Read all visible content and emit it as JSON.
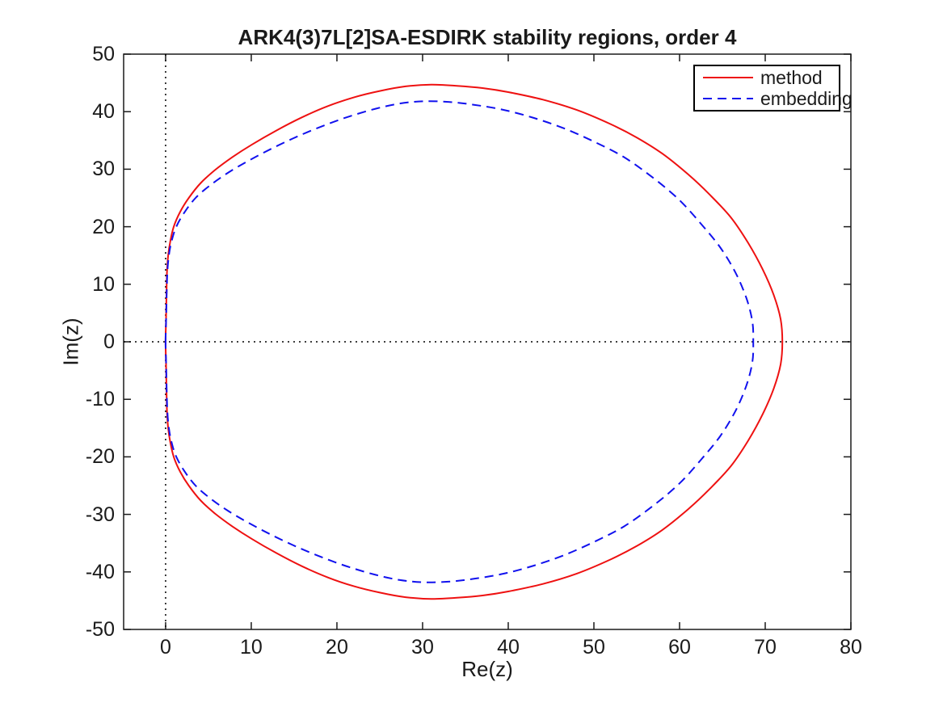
{
  "chart_data": {
    "type": "line",
    "title": "ARK4(3)7L[2]SA-ESDIRK stability regions, order 4",
    "xlabel": "Re(z)",
    "ylabel": "Im(z)",
    "xlim": [
      -4.9,
      80
    ],
    "ylim": [
      -50,
      50
    ],
    "xticks": [
      0,
      10,
      20,
      30,
      40,
      50,
      60,
      70,
      80
    ],
    "yticks": [
      -50,
      -40,
      -30,
      -20,
      -10,
      0,
      10,
      20,
      30,
      40,
      50
    ],
    "grid": false,
    "axis_color": "#1a1a1a",
    "reference_lines": {
      "vertical_x": 0,
      "horizontal_y": 0,
      "style": "dotted",
      "color": "#000000"
    },
    "legend": {
      "position": "top-right",
      "entries": [
        {
          "label": "method",
          "color": "#ee1111",
          "line_style": "solid"
        },
        {
          "label": "embedding",
          "color": "#1111ee",
          "line_style": "dashed"
        }
      ]
    },
    "series": [
      {
        "name": "method",
        "color": "#ee1111",
        "line_style": "solid",
        "closed": true,
        "symmetric_about_real_axis": true,
        "real_axis_crossings": [
          0,
          72
        ],
        "max_imag": 44.7,
        "upper_half_points": [
          [
            0,
            0
          ],
          [
            0.05,
            4
          ],
          [
            0.1,
            8
          ],
          [
            0.16,
            12
          ],
          [
            0.3,
            15
          ],
          [
            0.55,
            17.5
          ],
          [
            0.95,
            20
          ],
          [
            1.7,
            22.6
          ],
          [
            2.7,
            25
          ],
          [
            4.1,
            27.6
          ],
          [
            5.8,
            29.9
          ],
          [
            7.8,
            32.1
          ],
          [
            10.1,
            34.3
          ],
          [
            12.9,
            36.7
          ],
          [
            15.9,
            39.0
          ],
          [
            19,
            41.0
          ],
          [
            22,
            42.5
          ],
          [
            25,
            43.6
          ],
          [
            28,
            44.4
          ],
          [
            31,
            44.7
          ],
          [
            34,
            44.5
          ],
          [
            37,
            44.1
          ],
          [
            40,
            43.4
          ],
          [
            44,
            42.1
          ],
          [
            48,
            40.3
          ],
          [
            52,
            37.8
          ],
          [
            55,
            35.5
          ],
          [
            58,
            32.7
          ],
          [
            61,
            29.1
          ],
          [
            63.5,
            25.6
          ],
          [
            66,
            21.6
          ],
          [
            68,
            17.2
          ],
          [
            69.7,
            12.6
          ],
          [
            71,
            8.1
          ],
          [
            71.8,
            3.9
          ],
          [
            72,
            0
          ]
        ]
      },
      {
        "name": "embedding",
        "color": "#1111ee",
        "line_style": "dashed",
        "closed": true,
        "symmetric_about_real_axis": true,
        "real_axis_crossings": [
          0,
          68.6
        ],
        "max_imag": 41.8,
        "upper_half_points": [
          [
            0,
            0
          ],
          [
            0.06,
            4
          ],
          [
            0.12,
            8
          ],
          [
            0.2,
            12
          ],
          [
            0.38,
            15
          ],
          [
            0.7,
            17.5
          ],
          [
            1.25,
            20
          ],
          [
            2.2,
            22.5
          ],
          [
            3.5,
            25
          ],
          [
            5.2,
            27.2
          ],
          [
            7.2,
            29.3
          ],
          [
            9.6,
            31.4
          ],
          [
            12.4,
            33.6
          ],
          [
            15.4,
            35.7
          ],
          [
            18.5,
            37.6
          ],
          [
            21.5,
            39.2
          ],
          [
            24.5,
            40.5
          ],
          [
            27.3,
            41.4
          ],
          [
            30,
            41.8
          ],
          [
            33,
            41.7
          ],
          [
            36,
            41.2
          ],
          [
            39.5,
            40.3
          ],
          [
            43,
            38.9
          ],
          [
            46.5,
            37.1
          ],
          [
            50,
            34.8
          ],
          [
            53.5,
            32.1
          ],
          [
            57,
            28.4
          ],
          [
            60,
            24.6
          ],
          [
            62.5,
            20.5
          ],
          [
            64.7,
            16.5
          ],
          [
            66.5,
            12.1
          ],
          [
            67.8,
            7.6
          ],
          [
            68.5,
            3.5
          ],
          [
            68.6,
            0
          ]
        ]
      }
    ]
  }
}
